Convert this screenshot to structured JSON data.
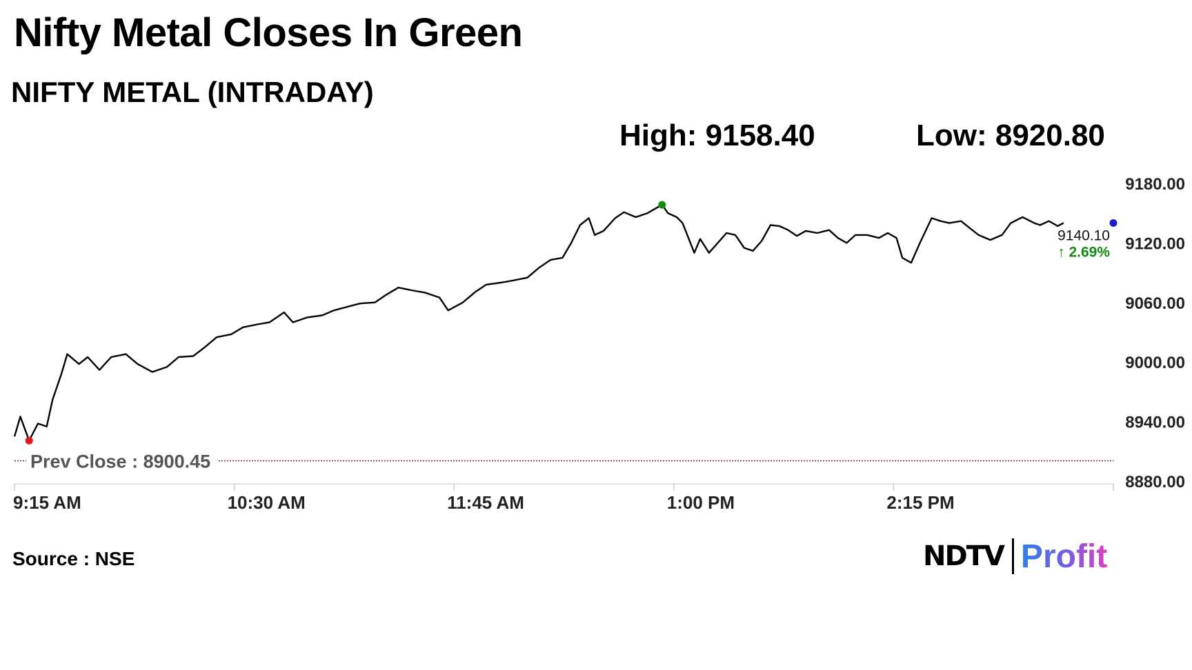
{
  "headline": "Nifty Metal Closes In Green",
  "subtitle": "NIFTY METAL (INTRADAY)",
  "stats": {
    "high": "High: 9158.40",
    "low": "Low: 8920.80"
  },
  "source": "Source : NSE",
  "logo": {
    "brand": "NDTV",
    "product": "Profit"
  },
  "colors": {
    "line": "#000000",
    "high_marker": "#138a13",
    "low_marker": "#e0191b",
    "last_marker": "#1a1fcc",
    "prev_close": "#8b1a1a",
    "change_up": "#138a13"
  },
  "chart_data": {
    "type": "line",
    "title": "NIFTY METAL (INTRADAY)",
    "xlabel": "",
    "ylabel": "",
    "x_ticks": [
      "9:15 AM",
      "10:30 AM",
      "11:45 AM",
      "1:00 PM",
      "2:15 PM"
    ],
    "y_ticks": [
      8880,
      8940,
      9000,
      9060,
      9120,
      9180
    ],
    "y_tick_labels": [
      "8880.00",
      "8940.00",
      "9000.00",
      "9060.00",
      "9120.00",
      "9180.00"
    ],
    "ylim": [
      8880,
      9180
    ],
    "xlim": [
      "9:15 AM",
      "3:30 PM"
    ],
    "prev_close": 8900.45,
    "prev_close_label": "Prev Close : 8900.45",
    "last_value_label": "9140.10",
    "change_label": "↑ 2.69%",
    "high_point": {
      "time": "12:56 PM",
      "value": 9158.4
    },
    "low_point": {
      "time": "9:20 AM",
      "value": 8920.8
    },
    "last_point": {
      "time": "3:30 PM",
      "value": 9140.1
    },
    "series": [
      {
        "points": [
          [
            "9:15 AM",
            8925
          ],
          [
            "9:17 AM",
            8945
          ],
          [
            "9:20 AM",
            8920.8
          ],
          [
            "9:23 AM",
            8938
          ],
          [
            "9:26 AM",
            8935
          ],
          [
            "9:28 AM",
            8962
          ],
          [
            "9:31 AM",
            8988
          ],
          [
            "9:33 AM",
            9008
          ],
          [
            "9:37 AM",
            8998
          ],
          [
            "9:40 AM",
            9005
          ],
          [
            "9:44 AM",
            8992
          ],
          [
            "9:48 AM",
            9005
          ],
          [
            "9:53 AM",
            9008
          ],
          [
            "9:57 AM",
            8998
          ],
          [
            "10:02 AM",
            8990
          ],
          [
            "10:07 AM",
            8995
          ],
          [
            "10:11 AM",
            9005
          ],
          [
            "10:16 AM",
            9006
          ],
          [
            "10:20 AM",
            9015
          ],
          [
            "10:24 AM",
            9025
          ],
          [
            "10:29 AM",
            9028
          ],
          [
            "10:33 AM",
            9035
          ],
          [
            "10:38 AM",
            9038
          ],
          [
            "10:42 AM",
            9040
          ],
          [
            "10:47 AM",
            9050
          ],
          [
            "10:50 AM",
            9040
          ],
          [
            "10:55 AM",
            9045
          ],
          [
            "11:00 AM",
            9047
          ],
          [
            "11:04 AM",
            9052
          ],
          [
            "11:09 AM",
            9056
          ],
          [
            "11:13 AM",
            9059
          ],
          [
            "11:18 AM",
            9060
          ],
          [
            "11:22 AM",
            9068
          ],
          [
            "11:26 AM",
            9075
          ],
          [
            "11:31 AM",
            9072
          ],
          [
            "11:35 AM",
            9070
          ],
          [
            "11:40 AM",
            9065
          ],
          [
            "11:43 AM",
            9052
          ],
          [
            "11:48 AM",
            9060
          ],
          [
            "11:52 AM",
            9070
          ],
          [
            "11:56 AM",
            9078
          ],
          [
            "12:01 PM",
            9080
          ],
          [
            "12:05 PM",
            9082
          ],
          [
            "12:10 PM",
            9085
          ],
          [
            "12:14 PM",
            9095
          ],
          [
            "12:18 PM",
            9103
          ],
          [
            "12:22 PM",
            9105
          ],
          [
            "12:25 PM",
            9120
          ],
          [
            "12:28 PM",
            9138
          ],
          [
            "12:31 PM",
            9145
          ],
          [
            "12:33 PM",
            9128
          ],
          [
            "12:36 PM",
            9132
          ],
          [
            "12:40 PM",
            9145
          ],
          [
            "12:43 PM",
            9151
          ],
          [
            "12:47 PM",
            9146
          ],
          [
            "12:51 PM",
            9150
          ],
          [
            "12:56 PM",
            9158.4
          ],
          [
            "12:58 PM",
            9150
          ],
          [
            "1:01 PM",
            9146
          ],
          [
            "1:03 PM",
            9140
          ],
          [
            "1:05 PM",
            9125
          ],
          [
            "1:07 PM",
            9110
          ],
          [
            "1:09 PM",
            9124
          ],
          [
            "1:12 PM",
            9110
          ],
          [
            "1:15 PM",
            9120
          ],
          [
            "1:18 PM",
            9130
          ],
          [
            "1:21 PM",
            9128
          ],
          [
            "1:24 PM",
            9115
          ],
          [
            "1:27 PM",
            9112
          ],
          [
            "1:30 PM",
            9122
          ],
          [
            "1:33 PM",
            9138
          ],
          [
            "1:36 PM",
            9137
          ],
          [
            "1:39 PM",
            9133
          ],
          [
            "1:42 PM",
            9127
          ],
          [
            "1:45 PM",
            9132
          ],
          [
            "1:49 PM",
            9130
          ],
          [
            "1:53 PM",
            9133
          ],
          [
            "1:56 PM",
            9125
          ],
          [
            "1:59 PM",
            9120
          ],
          [
            "2:02 PM",
            9128
          ],
          [
            "2:06 PM",
            9128
          ],
          [
            "2:10 PM",
            9125
          ],
          [
            "2:13 PM",
            9130
          ],
          [
            "2:16 PM",
            9125
          ],
          [
            "2:18 PM",
            9105
          ],
          [
            "2:21 PM",
            9100
          ],
          [
            "2:24 PM",
            9120
          ],
          [
            "2:28 PM",
            9145
          ],
          [
            "2:31 PM",
            9142
          ],
          [
            "2:34 PM",
            9140
          ],
          [
            "2:38 PM",
            9142
          ],
          [
            "2:41 PM",
            9135
          ],
          [
            "2:44 PM",
            9128
          ],
          [
            "2:48 PM",
            9123
          ],
          [
            "2:52 PM",
            9128
          ],
          [
            "2:55 PM",
            9140
          ],
          [
            "2:59 PM",
            9146
          ],
          [
            "3:03 PM",
            9140
          ],
          [
            "3:05 PM",
            9138
          ],
          [
            "3:08 PM",
            9142
          ],
          [
            "3:11 PM",
            9137
          ],
          [
            "3:13 PM",
            9140.1
          ]
        ]
      }
    ]
  }
}
